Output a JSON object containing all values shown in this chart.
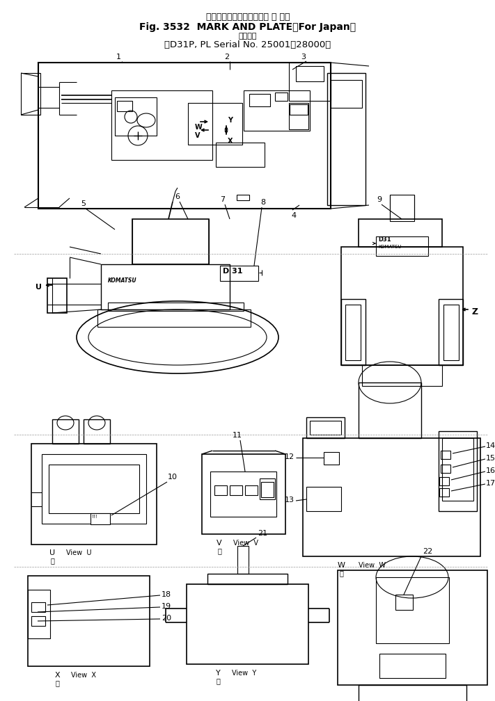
{
  "title_jp1": "マークおよびプレート（国 内 向）",
  "title_en": "Fig. 3532  MARK AND PLATE（For Japan）",
  "subtitle_jp": "適用号機",
  "subtitle_en": "（D31P, PL Serial No. 25001～28000）",
  "bg_color": "#ffffff",
  "lc": "#000000"
}
